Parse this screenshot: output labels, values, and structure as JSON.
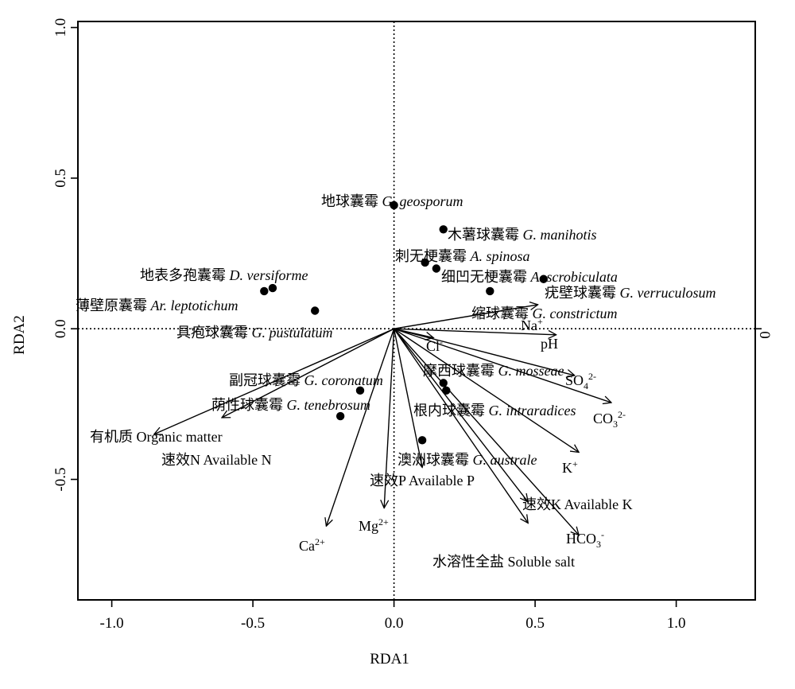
{
  "chart_data": {
    "type": "scatter",
    "title": "",
    "xlabel": "RDA1",
    "ylabel": "RDA2",
    "right_axis_label": "0",
    "xlim": [
      -1.12,
      1.28
    ],
    "ylim": [
      -0.9,
      1.02
    ],
    "x_ticks": [
      {
        "value": -1.0,
        "label": "-1.0"
      },
      {
        "value": -0.5,
        "label": "-0.5"
      },
      {
        "value": 0.0,
        "label": "0.0"
      },
      {
        "value": 0.5,
        "label": "0.5"
      },
      {
        "value": 1.0,
        "label": "1.0"
      }
    ],
    "y_ticks": [
      {
        "value": -0.5,
        "label": "-0.5"
      },
      {
        "value": 0.0,
        "label": "0.0"
      },
      {
        "value": 0.5,
        "label": "0.5"
      },
      {
        "value": 1.0,
        "label": "1.0"
      }
    ],
    "reference_lines": {
      "x": 0,
      "y": 0,
      "style": "dotted"
    },
    "grid": false,
    "species": [
      {
        "cn": "地球囊霉",
        "latin": "G. geosporum",
        "x": 0.0,
        "y": 0.41
      },
      {
        "cn": "木薯球囊霉",
        "latin": "G. manihotis",
        "x": 0.175,
        "y": 0.33
      },
      {
        "cn": "刺无梗囊霉",
        "latin": "A. spinosa",
        "x": 0.11,
        "y": 0.22
      },
      {
        "cn": "细凹无梗囊霉",
        "latin": "A. scrobiculata",
        "x": 0.15,
        "y": 0.2
      },
      {
        "cn": "疣壁球囊霉",
        "latin": "G. verruculosum",
        "x": 0.53,
        "y": 0.165
      },
      {
        "cn": "缩球囊霉",
        "latin": "G. constrictum",
        "x": 0.34,
        "y": 0.125
      },
      {
        "cn": "地表多孢囊霉",
        "latin": "D. versiforme",
        "x": -0.43,
        "y": 0.135
      },
      {
        "cn": "薄壁原囊霉",
        "latin": "Ar. leptotichum",
        "x": -0.46,
        "y": 0.125
      },
      {
        "cn": "具疱球囊霉",
        "latin": "G. pustulatum",
        "x": -0.28,
        "y": 0.06
      },
      {
        "cn": "副冠球囊霉",
        "latin": "G. coronatum",
        "x": -0.12,
        "y": -0.205
      },
      {
        "cn": "荫性球囊霉",
        "latin": "G. tenebrosum",
        "x": -0.19,
        "y": -0.29
      },
      {
        "cn": "摩西球囊霉",
        "latin": "G. mosseae",
        "x": 0.175,
        "y": -0.18
      },
      {
        "cn": "根内球囊霉",
        "latin": "G. intraradices",
        "x": 0.185,
        "y": -0.205
      },
      {
        "cn": "澳洲球囊霉",
        "latin": "G. australe",
        "x": 0.1,
        "y": -0.37
      }
    ],
    "vectors": [
      {
        "name": "Na",
        "sup": "+",
        "x": 0.51,
        "y": 0.08
      },
      {
        "name": "pH",
        "sup": "",
        "x": 0.575,
        "y": -0.02
      },
      {
        "name": "Cl",
        "sup": "-",
        "x": 0.14,
        "y": -0.03
      },
      {
        "name": "SO",
        "sub": "4",
        "sup": "2-",
        "x": 0.64,
        "y": -0.155
      },
      {
        "name": "CO",
        "sub": "3",
        "sup": "2-",
        "x": 0.77,
        "y": -0.245
      },
      {
        "name": "K",
        "sup": "+",
        "x": 0.655,
        "y": -0.41
      },
      {
        "name": "速效K Available K",
        "sup": "",
        "x": 0.475,
        "y": -0.575
      },
      {
        "name": "HCO",
        "sub": "3",
        "sup": "-",
        "x": 0.655,
        "y": -0.685
      },
      {
        "name": "水溶性全盐 Soluble salt",
        "sup": "",
        "x": 0.475,
        "y": -0.645
      },
      {
        "name": "速效P Available P",
        "sup": "",
        "x": 0.1,
        "y": -0.46
      },
      {
        "name": "Mg",
        "sup": "2+",
        "x": -0.035,
        "y": -0.595
      },
      {
        "name": "Ca",
        "sup": "2+",
        "x": -0.24,
        "y": -0.655
      },
      {
        "name": "有机质 Organic matter",
        "sup": "",
        "x": -0.85,
        "y": -0.35
      },
      {
        "name": "速效N Available N",
        "sup": "",
        "x": -0.61,
        "y": -0.295
      }
    ]
  }
}
